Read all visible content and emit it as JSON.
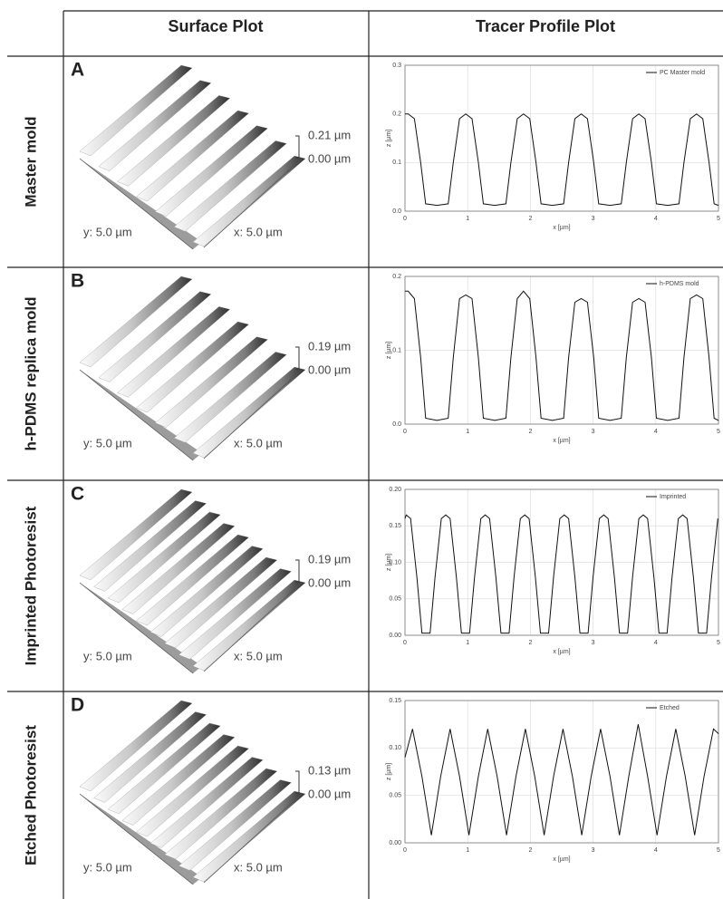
{
  "header": {
    "col1": "Surface Plot",
    "col2": "Tracer Profile Plot"
  },
  "rows": [
    {
      "label": "Master mold",
      "panel": "A",
      "z_max": "0.21 µm",
      "z_min": "0.00 µm",
      "y_size": "y: 5.0 µm",
      "x_size": "x: 5.0 µm"
    },
    {
      "label": "h-PDMS replica mold",
      "panel": "B",
      "z_max": "0.19 µm",
      "z_min": "0.00 µm",
      "y_size": "y: 5.0 µm",
      "x_size": "x: 5.0 µm"
    },
    {
      "label": "Imprinted Photoresist",
      "panel": "C",
      "z_max": "0.19 µm",
      "z_min": "0.00 µm",
      "y_size": "y: 5.0 µm",
      "x_size": "x: 5.0 µm"
    },
    {
      "label": "Etched Photoresist",
      "panel": "D",
      "z_max": "0.13 µm",
      "z_min": "0.00 µm",
      "y_size": "y: 5.0 µm",
      "x_size": "x: 5.0 µm"
    }
  ],
  "chart_data": [
    {
      "type": "line",
      "xlabel": "x [µm]",
      "ylabel": "z [µm]",
      "grid": true,
      "xlim": [
        0,
        5
      ],
      "ylim": [
        0,
        0.3
      ],
      "xticks": [
        0,
        1,
        2,
        3,
        4,
        5
      ],
      "yticks": [
        {
          "value": 0,
          "label": "0.0"
        },
        0.1,
        0.2,
        0.3
      ],
      "x": [
        0,
        0.05,
        0.15,
        0.25,
        0.33,
        0.51,
        0.69,
        0.77,
        0.87,
        0.97,
        1.07,
        1.17,
        1.25,
        1.43,
        1.61,
        1.69,
        1.79,
        1.89,
        1.99,
        2.09,
        2.17,
        2.35,
        2.53,
        2.61,
        2.71,
        2.81,
        2.91,
        3.01,
        3.09,
        3.27,
        3.45,
        3.53,
        3.63,
        3.73,
        3.83,
        3.93,
        4.01,
        4.19,
        4.37,
        4.45,
        4.55,
        4.65,
        4.75,
        4.85,
        4.93,
        5
      ],
      "series": [
        {
          "name": "PC Master mold",
          "color": "#111111",
          "values": [
            0.2,
            0.2,
            0.19,
            0.1,
            0.015,
            0.012,
            0.015,
            0.1,
            0.19,
            0.2,
            0.19,
            0.1,
            0.015,
            0.012,
            0.015,
            0.1,
            0.19,
            0.2,
            0.19,
            0.1,
            0.015,
            0.012,
            0.015,
            0.1,
            0.19,
            0.2,
            0.19,
            0.1,
            0.015,
            0.012,
            0.015,
            0.1,
            0.19,
            0.2,
            0.19,
            0.1,
            0.015,
            0.012,
            0.015,
            0.1,
            0.19,
            0.2,
            0.19,
            0.1,
            0.015,
            0.012
          ]
        }
      ]
    },
    {
      "type": "line",
      "xlabel": "x [µm]",
      "ylabel": "z [µm]",
      "grid": true,
      "xlim": [
        0,
        5
      ],
      "ylim": [
        0,
        0.2
      ],
      "xticks": [
        0,
        1,
        2,
        3,
        4,
        5
      ],
      "yticks": [
        {
          "value": 0,
          "label": "0.0"
        },
        0.1,
        0.2
      ],
      "x": [
        0,
        0.05,
        0.15,
        0.25,
        0.33,
        0.51,
        0.69,
        0.77,
        0.87,
        0.97,
        1.07,
        1.17,
        1.25,
        1.43,
        1.61,
        1.69,
        1.79,
        1.89,
        1.99,
        2.09,
        2.17,
        2.35,
        2.53,
        2.61,
        2.71,
        2.81,
        2.91,
        3.01,
        3.09,
        3.27,
        3.45,
        3.53,
        3.63,
        3.73,
        3.83,
        3.93,
        4.01,
        4.19,
        4.37,
        4.45,
        4.55,
        4.65,
        4.75,
        4.85,
        4.93,
        5
      ],
      "series": [
        {
          "name": "h-PDMS mold",
          "color": "#111111",
          "values": [
            0.18,
            0.18,
            0.17,
            0.09,
            0.008,
            0.005,
            0.008,
            0.09,
            0.17,
            0.175,
            0.17,
            0.09,
            0.008,
            0.005,
            0.008,
            0.09,
            0.17,
            0.18,
            0.17,
            0.09,
            0.008,
            0.005,
            0.008,
            0.09,
            0.165,
            0.17,
            0.165,
            0.09,
            0.008,
            0.005,
            0.008,
            0.09,
            0.165,
            0.17,
            0.165,
            0.09,
            0.008,
            0.005,
            0.008,
            0.09,
            0.17,
            0.175,
            0.17,
            0.09,
            0.008,
            0.005
          ]
        }
      ]
    },
    {
      "type": "line",
      "xlabel": "x [µm]",
      "ylabel": "z [µm]",
      "grid": true,
      "xlim": [
        0,
        5
      ],
      "ylim": [
        0,
        0.2
      ],
      "xticks": [
        0,
        1,
        2,
        3,
        4,
        5
      ],
      "yticks": [
        {
          "value": 0,
          "label": "0.00"
        },
        0.05,
        {
          "value": 0.1,
          "label": "0.10"
        },
        0.15,
        {
          "value": 0.2,
          "label": "0.20"
        }
      ],
      "x": [
        0,
        0.02,
        0.09,
        0.19,
        0.27,
        0.4,
        0.48,
        0.58,
        0.65,
        0.72,
        0.82,
        0.9,
        1.03,
        1.11,
        1.21,
        1.28,
        1.35,
        1.45,
        1.53,
        1.66,
        1.74,
        1.84,
        1.91,
        1.98,
        2.08,
        2.16,
        2.29,
        2.37,
        2.47,
        2.54,
        2.61,
        2.71,
        2.79,
        2.92,
        3,
        3.1,
        3.17,
        3.24,
        3.34,
        3.42,
        3.55,
        3.63,
        3.73,
        3.8,
        3.87,
        3.97,
        4.05,
        4.18,
        4.26,
        4.36,
        4.43,
        4.5,
        4.6,
        4.68,
        4.81,
        4.89,
        4.99
      ],
      "series": [
        {
          "name": "Imprinted",
          "color": "#111111",
          "values": [
            0.16,
            0.165,
            0.16,
            0.08,
            0.003,
            0.003,
            0.08,
            0.16,
            0.165,
            0.16,
            0.08,
            0.003,
            0.003,
            0.08,
            0.16,
            0.165,
            0.16,
            0.08,
            0.003,
            0.003,
            0.08,
            0.16,
            0.165,
            0.16,
            0.08,
            0.003,
            0.003,
            0.08,
            0.16,
            0.165,
            0.16,
            0.08,
            0.003,
            0.003,
            0.08,
            0.16,
            0.165,
            0.16,
            0.08,
            0.003,
            0.003,
            0.08,
            0.16,
            0.165,
            0.16,
            0.08,
            0.003,
            0.003,
            0.08,
            0.16,
            0.165,
            0.16,
            0.08,
            0.003,
            0.003,
            0.08,
            0.16
          ]
        }
      ]
    },
    {
      "type": "line",
      "xlabel": "x [µm]",
      "ylabel": "z [µm]",
      "grid": true,
      "xlim": [
        0,
        5
      ],
      "ylim": [
        0,
        0.15
      ],
      "xticks": [
        0,
        1,
        2,
        3,
        4,
        5
      ],
      "yticks": [
        {
          "value": 0,
          "label": "0.00"
        },
        0.05,
        {
          "value": 0.1,
          "label": "0.10"
        },
        0.15
      ],
      "x": [
        0,
        0.12,
        0.27,
        0.42,
        0.57,
        0.72,
        0.87,
        1.02,
        1.17,
        1.32,
        1.47,
        1.62,
        1.77,
        1.92,
        2.07,
        2.22,
        2.37,
        2.52,
        2.67,
        2.82,
        2.97,
        3.12,
        3.27,
        3.42,
        3.57,
        3.72,
        3.87,
        4.02,
        4.17,
        4.32,
        4.47,
        4.62,
        4.77,
        4.92,
        5
      ],
      "series": [
        {
          "name": "Etched",
          "color": "#111111",
          "values": [
            0.09,
            0.12,
            0.07,
            0.008,
            0.07,
            0.12,
            0.07,
            0.008,
            0.07,
            0.12,
            0.07,
            0.008,
            0.07,
            0.12,
            0.07,
            0.008,
            0.07,
            0.12,
            0.07,
            0.008,
            0.07,
            0.12,
            0.07,
            0.008,
            0.07,
            0.125,
            0.07,
            0.008,
            0.07,
            0.12,
            0.07,
            0.008,
            0.07,
            0.12,
            0.115
          ]
        }
      ]
    }
  ]
}
